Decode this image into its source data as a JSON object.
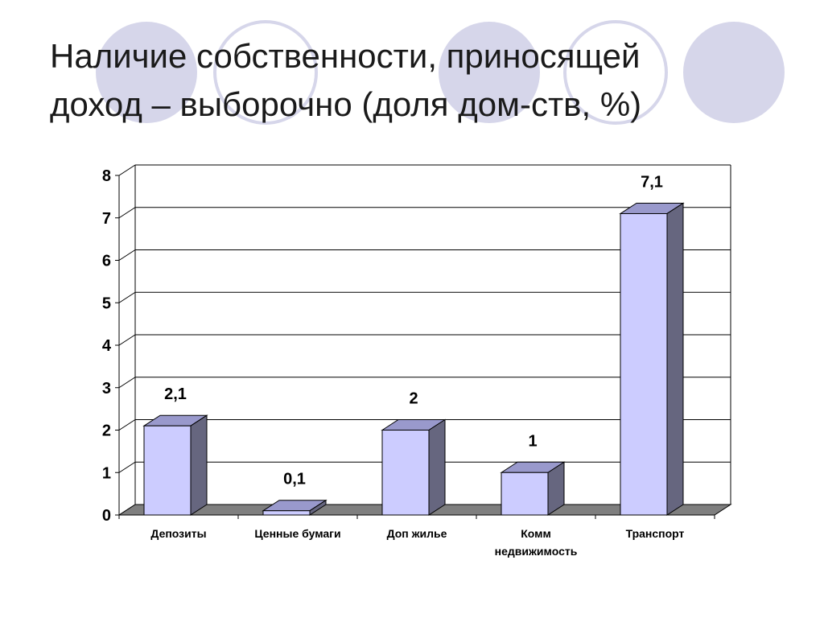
{
  "slide": {
    "title_line1": "Наличие собственности, приносящей",
    "title_line2": "доход – выборочно (доля дом-ств, %)"
  },
  "theme": {
    "circle_fill": "#d6d6ea",
    "circle_stroke": "#d6d6ea",
    "bar_front": "#ccccff",
    "bar_top": "#9999cc",
    "bar_side": "#66667f",
    "floor": "#7f7f7f"
  },
  "chart_data": {
    "type": "bar",
    "title": "",
    "xlabel": "",
    "ylabel": "",
    "categories": [
      [
        "Депозиты"
      ],
      [
        "Ценные бумаги"
      ],
      [
        "Доп жилье"
      ],
      [
        "Комм",
        "недвижимость"
      ],
      [
        "Транспорт"
      ]
    ],
    "values": [
      2.1,
      0.1,
      2,
      1,
      7.1
    ],
    "data_labels": [
      "2,1",
      "0,1",
      "2",
      "1",
      "7,1"
    ],
    "ylim": [
      0,
      8
    ],
    "yticks": [
      "0",
      "1",
      "2",
      "3",
      "4",
      "5",
      "6",
      "7",
      "8"
    ],
    "grid": true,
    "legend": "none",
    "style": "3d-column"
  }
}
